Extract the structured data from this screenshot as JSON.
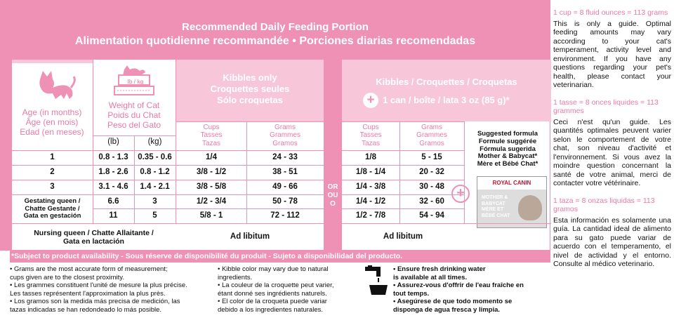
{
  "header": {
    "title_en": "Recommended Daily Feeding Portion",
    "title_fr_es": "Alimentation quotidienne recommandée • Porciones diarias recomendadas"
  },
  "columns": {
    "age": "Age (in months)\nÂge (en mois)\nEdad (en meses)",
    "weight": "Weight of Cat\nPoids du Chat\nPeso del Gato",
    "scale_label": "lb / kg",
    "unit_lb": "(lb)",
    "unit_kg": "(kg)",
    "kibbles_only": "Kibbles only\nCroquettes seules\nSólo croquetas",
    "kibbles_can": "Kibbles / Croquettes / Croquetas",
    "can_line": "1 can / boîte / lata 3 oz (85 g)*",
    "cups": "Cups\nTasses\nTazas",
    "grams": "Grams\nGrammes\nGramos",
    "or": "OR\nOU\nO"
  },
  "rows": [
    {
      "age": "1",
      "lb": "0.8 - 1.3",
      "kg": "0.35 - 0.6",
      "cups_only": "1/4",
      "grams_only": "24 - 33",
      "cups_can": "1/8",
      "grams_can": "5 - 15"
    },
    {
      "age": "2",
      "lb": "1.8 - 2.6",
      "kg": "0.8 - 1.2",
      "cups_only": "3/8 - 1/2",
      "grams_only": "38 - 51",
      "cups_can": "1/8 - 1/4",
      "grams_can": "20 - 32"
    },
    {
      "age": "3",
      "lb": "3.1 - 4.6",
      "kg": "1.4  - 2.1",
      "cups_only": "3/8 - 5/8",
      "grams_only": "49 - 66",
      "cups_can": "1/4 - 3/8",
      "grams_can": "30 - 48"
    },
    {
      "age": "Gestating queen /\nChatte Gestante /\nGata en gestación",
      "lb": "6.6",
      "kg": "3",
      "cups_only": "1/2 - 3/4",
      "grams_only": "50 - 78",
      "cups_can": "1/4 - 1/2",
      "grams_can": "32 - 60"
    },
    {
      "age": "",
      "lb": "11",
      "kg": "5",
      "cups_only": "5/8 - 1",
      "grams_only": "72 - 112",
      "cups_can": "1/2 - 7/8",
      "grams_can": "54 - 94"
    }
  ],
  "nursing": {
    "label": "Nursing queen / Chatte Allaitante /\nGata en lactación",
    "ad_lib_1": "Ad libitum",
    "ad_lib_2": "Ad libitum"
  },
  "suggested": {
    "text": "Suggested formula\nFormule suggérée\nFórmula sugerida\nMother & Babycat*\nMère et Bébé Chat*",
    "brand": "ROYAL CANIN",
    "pack_text": "MOTHER &\nBABYCAT\nMÈRE ET\nBÉBÉ CHAT"
  },
  "availability": "*Subject to product availability - Sous réserve de disponibilité du produit - Sujeto a disponibilidad del producto.",
  "footnotes": {
    "col1": [
      "• Grams are the most accurate form of measurement;\n  cups given are to the closest proximity.",
      "• Les grammes constituent l'unité de mesure la plus précise.\n  Les tasses représentent l'approximation la plus près.",
      "• Los gramos son la medida más precisa de medición, las\n  tazas indicadas se han redondeado lo más posible."
    ],
    "col2": [
      "• Kibble color may vary due to natural\n  ingredients.",
      "• La couleur de la croquette peut varier,\n  étant donné ses ingrédients naturels.",
      "• El color de la croqueta puede variar\n  debido a los ingredientes naturales."
    ],
    "col3": [
      "• Ensure fresh drinking water\n  is available at all times.",
      "• Assurez-vous d'offrir de l'eau fraîche en\n  tout temps.",
      "• Asegúrese de que todo momento se\n  disponga de agua fresca y limpia."
    ]
  },
  "sidebar": {
    "h1": "1 cup = 8 fluid ounces = 113 grams",
    "p1": "This is only a guide. Optimal feeding amounts may vary according to your cat's temperament, activity level and environment. If you have any questions regarding your pet's health, please contact your veterinarian.",
    "h2": "1 tasse = 8 onces liquides = 113 grammes",
    "p2": "Ceci n'est qu'un guide. Les quantités optimales peuvent varier selon le comportement de votre chat, son niveau d'activité et l'environnement. Si vous avez la moindre question concernant la santé de votre animal, merci de contacter votre vétérinaire.",
    "h3": "1 taza = 8 onzas liquidas = 113 gramos",
    "p3": "Esta información es solamente una guía. La cantidad ideal de alimento para su gato puede variar de acuerdo con el temperamento, el nivel de actividad y el entorno. Consulte al médico veterinario."
  },
  "colors": {
    "accent": "#ee91b5",
    "accent_light": "#f7c6d9",
    "accent_text": "#e77aa7"
  },
  "icons": [
    "kitten-icon",
    "scale-cat-icon",
    "plus-icon",
    "water-tap-icon",
    "cat-food-pack-icon"
  ]
}
